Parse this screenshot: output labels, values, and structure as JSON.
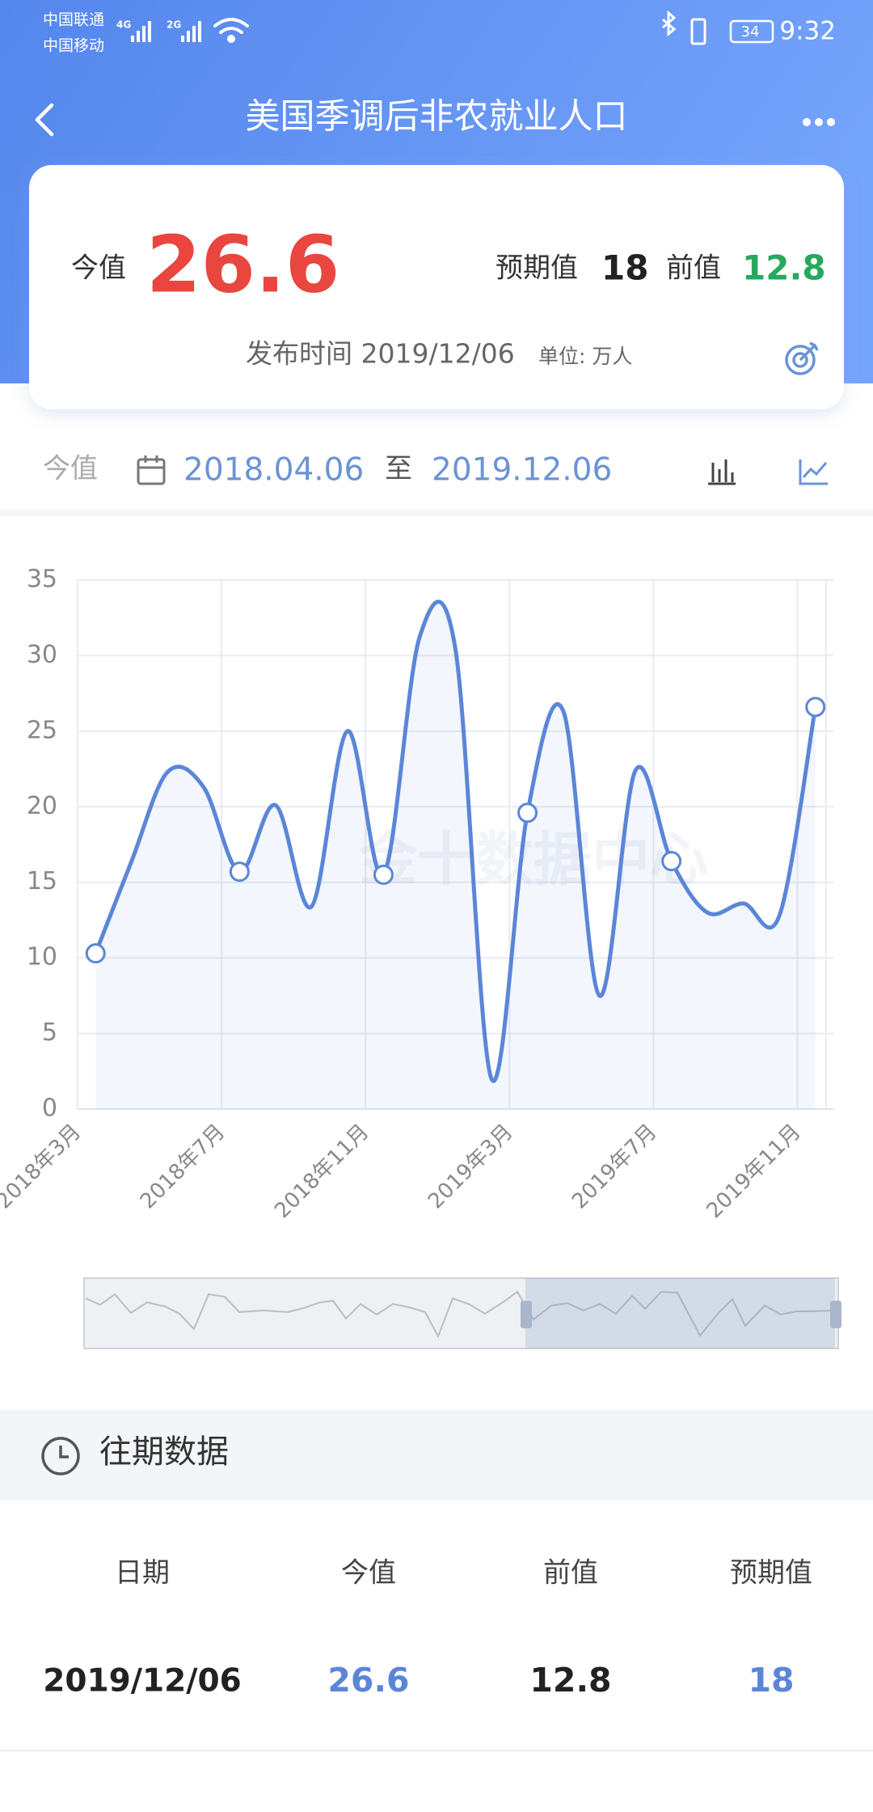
{
  "status_bar": {
    "carrier_1": "中国联通",
    "carrier_2": "中国移动",
    "network_1": "4G",
    "network_2": "2G",
    "battery": "34",
    "time": "9:32"
  },
  "header": {
    "title": "美国季调后非农就业人口"
  },
  "summary": {
    "actual_label": "今值",
    "actual": "26.6",
    "forecast_label": "预期值",
    "forecast": "18",
    "previous_label": "前值",
    "previous": "12.8",
    "release_label": "发布时间 2019/12/06",
    "unit": "单位: 万人"
  },
  "range": {
    "label": "今值",
    "start": "2018.04.06",
    "separator": "至",
    "end": "2019.12.06"
  },
  "chart_data": {
    "type": "line",
    "categories": [
      "2018年3月",
      null,
      null,
      null,
      "2018年7月",
      null,
      null,
      null,
      "2018年11月",
      null,
      null,
      null,
      "2019年3月",
      null,
      null,
      null,
      "2019年7月",
      null,
      null,
      null,
      "2019年11月"
    ],
    "values": [
      10.3,
      16.4,
      22.3,
      21.3,
      15.7,
      20.1,
      13.4,
      25.0,
      15.5,
      31.2,
      30.4,
      2.0,
      19.6,
      26.3,
      7.5,
      22.4,
      16.4,
      13.0,
      13.6,
      12.8,
      26.6
    ],
    "color": "#5b86d8",
    "ylim": [
      0,
      35
    ],
    "yticks": [
      0,
      5,
      10,
      15,
      20,
      25,
      30,
      35
    ],
    "grid": true,
    "watermark": "金十数据中心"
  },
  "history": {
    "title": "往期数据",
    "columns": [
      "日期",
      "今值",
      "前值",
      "预期值"
    ],
    "rows": [
      [
        "2019/12/06",
        "26.6",
        "12.8",
        "18"
      ]
    ]
  }
}
